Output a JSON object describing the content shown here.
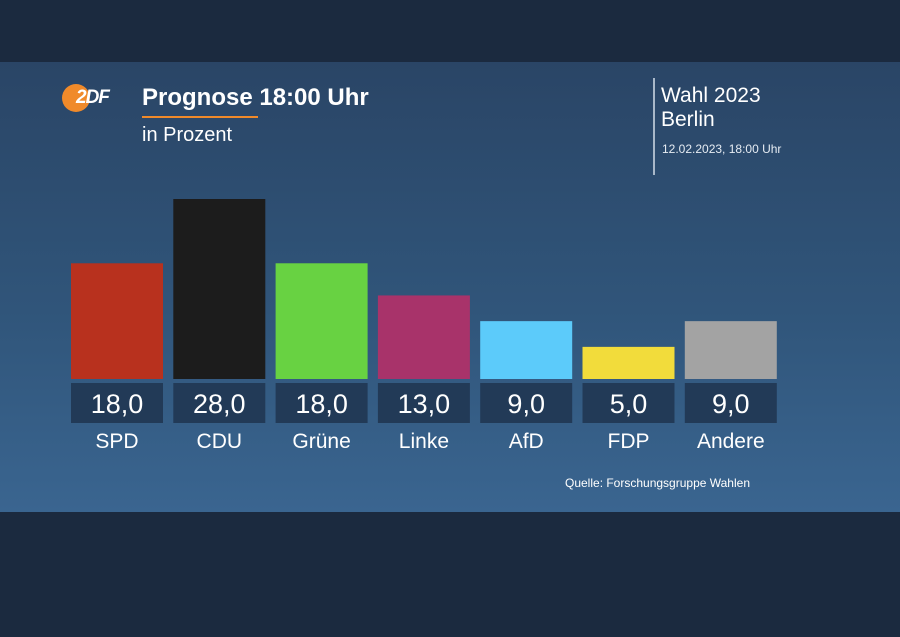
{
  "header": {
    "logo_text": "2DF",
    "title": "Prognose 18:00 Uhr",
    "subtitle": "in Prozent",
    "election_line1": "Wahl 2023",
    "election_line2": "Berlin",
    "timestamp": "12.02.2023, 18:00 Uhr"
  },
  "footer": {
    "source": "Quelle: Forschungsgruppe Wahlen"
  },
  "colors": {
    "background": "#1b2a3f",
    "accent": "#f08a2a",
    "label_box": "#223a57"
  },
  "chart_data": {
    "type": "bar",
    "title": "Prognose 18:00 Uhr",
    "subtitle": "in Prozent",
    "categories": [
      "SPD",
      "CDU",
      "Grüne",
      "Linke",
      "AfD",
      "FDP",
      "Andere"
    ],
    "values": [
      18.0,
      28.0,
      18.0,
      13.0,
      9.0,
      5.0,
      9.0
    ],
    "value_labels": [
      "18,0",
      "28,0",
      "18,0",
      "13,0",
      "9,0",
      "5,0",
      "9,0"
    ],
    "bar_colors": [
      "#b8311e",
      "#1c1c1c",
      "#68d242",
      "#a8336a",
      "#5ccbfa",
      "#f2dc3b",
      "#a3a3a3"
    ],
    "ylim": [
      0,
      28
    ],
    "grid": false,
    "legend": "none"
  }
}
